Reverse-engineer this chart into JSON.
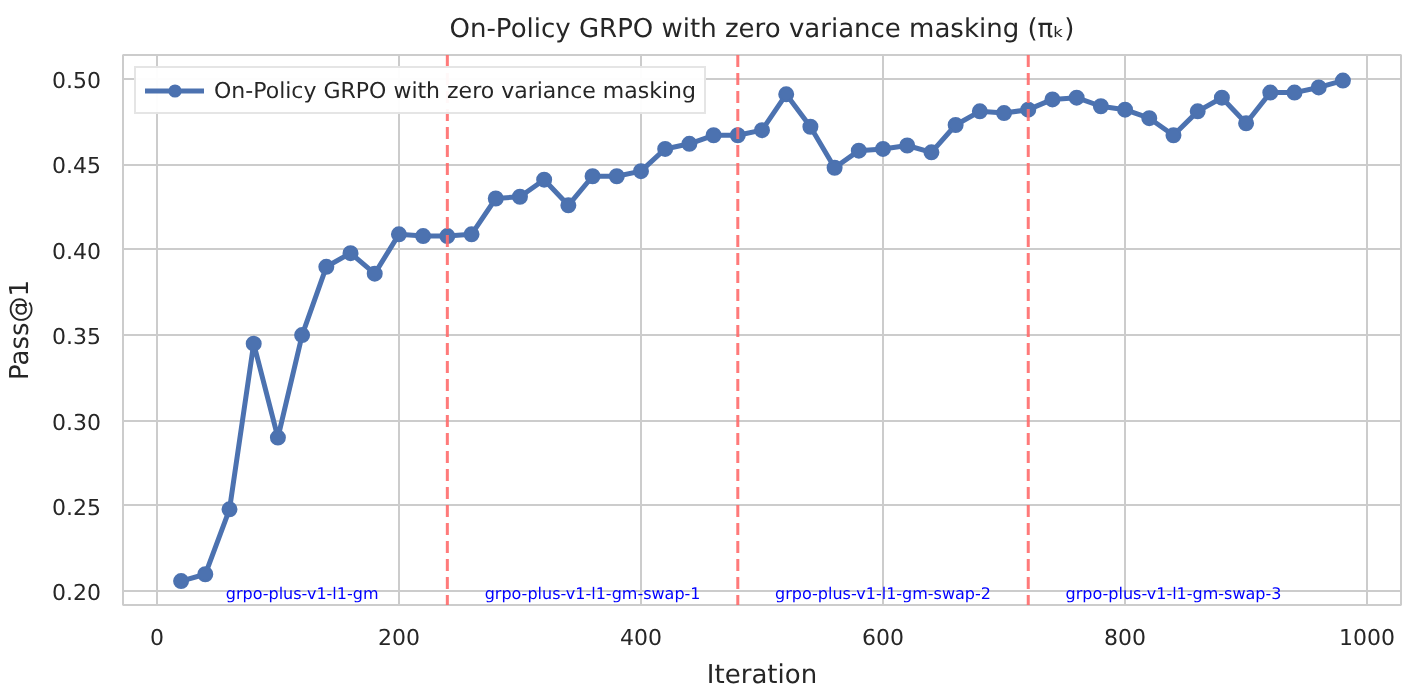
{
  "chart_data": {
    "type": "line",
    "title": "On-Policy GRPO with zero variance masking (πₖ)",
    "xlabel": "Iteration",
    "ylabel": "Pass@1",
    "x": [
      20,
      40,
      60,
      80,
      100,
      120,
      140,
      160,
      180,
      200,
      220,
      240,
      260,
      280,
      300,
      320,
      340,
      360,
      380,
      400,
      420,
      440,
      460,
      480,
      500,
      520,
      540,
      560,
      580,
      600,
      620,
      640,
      660,
      680,
      700,
      720,
      740,
      760,
      780,
      800,
      820,
      840,
      860,
      880,
      900,
      920,
      940,
      960,
      980
    ],
    "series": [
      {
        "name": "On-Policy GRPO with zero variance masking",
        "color": "#4c72b0",
        "values": [
          0.206,
          0.21,
          0.248,
          0.345,
          0.29,
          0.35,
          0.39,
          0.398,
          0.386,
          0.409,
          0.408,
          0.408,
          0.409,
          0.43,
          0.431,
          0.441,
          0.426,
          0.443,
          0.443,
          0.446,
          0.459,
          0.462,
          0.467,
          0.467,
          0.47,
          0.491,
          0.472,
          0.448,
          0.458,
          0.459,
          0.461,
          0.457,
          0.473,
          0.481,
          0.48,
          0.482,
          0.488,
          0.489,
          0.484,
          0.482,
          0.477,
          0.467,
          0.481,
          0.489,
          0.474,
          0.492,
          0.492,
          0.495,
          0.499
        ]
      }
    ],
    "xlim": [
      -28,
      1028
    ],
    "ylim": [
      0.192,
      0.514
    ],
    "xticks": [
      0,
      200,
      400,
      600,
      800,
      1000
    ],
    "yticks": [
      {
        "value": 0.2,
        "label": "0.20"
      },
      {
        "value": 0.25,
        "label": "0.25"
      },
      {
        "value": 0.3,
        "label": "0.30"
      },
      {
        "value": 0.35,
        "label": "0.35"
      },
      {
        "value": 0.4,
        "label": "0.40"
      },
      {
        "value": 0.45,
        "label": "0.45"
      },
      {
        "value": 0.5,
        "label": "0.50"
      }
    ],
    "ref_lines": [
      {
        "axis": "x",
        "value": 240,
        "color": "#ff6b6b",
        "line_style": "dashed"
      },
      {
        "axis": "x",
        "value": 480,
        "color": "#ff6b6b",
        "line_style": "dashed"
      },
      {
        "axis": "x",
        "value": 720,
        "color": "#ff6b6b",
        "line_style": "dashed"
      }
    ],
    "annotations": [
      "grpo-plus-v1-l1-gm",
      "grpo-plus-v1-l1-gm-swap-1",
      "grpo-plus-v1-l1-gm-swap-2",
      "grpo-plus-v1-l1-gm-swap-3"
    ],
    "grid": true,
    "legend": "top left",
    "marker": "circle",
    "line_style": "solid"
  }
}
